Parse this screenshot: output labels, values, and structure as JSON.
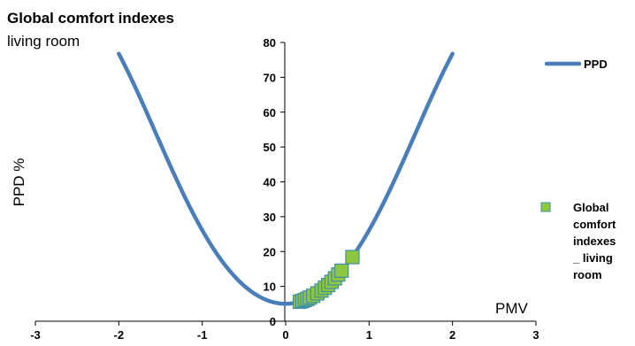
{
  "chart_data": {
    "type": "scatter",
    "title": "Global comfort indexes",
    "subtitle": "living room",
    "xlabel": "PMV",
    "ylabel": "PPD %",
    "xlim": [
      -3,
      3
    ],
    "ylim": [
      0,
      80
    ],
    "x_ticks": [
      -3,
      -2,
      -1,
      0,
      1,
      2,
      3
    ],
    "y_ticks": [
      0,
      10,
      20,
      30,
      40,
      50,
      60,
      70,
      80
    ],
    "grid": false,
    "legend_position": "right",
    "series": [
      {
        "name": "PPD",
        "kind": "line",
        "color": "#4a7ebb",
        "x_range": [
          -2,
          2
        ],
        "formula": "PPD = 100 - 95*exp(-0.03353*PMV^4 - 0.2179*PMV^2)"
      },
      {
        "name": "Global comfort indexes _ living room",
        "legend_lines": [
          "Global",
          "comfort",
          "indexes",
          "_ living",
          "room"
        ],
        "kind": "marker",
        "color": "#8dc63f",
        "edge_color": "#3f8fa8",
        "points": [
          {
            "x": 0.17,
            "y": 5.6
          },
          {
            "x": 0.2,
            "y": 5.8
          },
          {
            "x": 0.23,
            "y": 6.1
          },
          {
            "x": 0.26,
            "y": 6.4
          },
          {
            "x": 0.29,
            "y": 6.8
          },
          {
            "x": 0.33,
            "y": 7.3
          },
          {
            "x": 0.38,
            "y": 8.0
          },
          {
            "x": 0.43,
            "y": 8.8
          },
          {
            "x": 0.47,
            "y": 9.6
          },
          {
            "x": 0.51,
            "y": 10.4
          },
          {
            "x": 0.55,
            "y": 11.3
          },
          {
            "x": 0.59,
            "y": 12.3
          },
          {
            "x": 0.63,
            "y": 13.4
          },
          {
            "x": 0.67,
            "y": 14.5
          },
          {
            "x": 0.8,
            "y": 18.4
          }
        ]
      }
    ]
  }
}
